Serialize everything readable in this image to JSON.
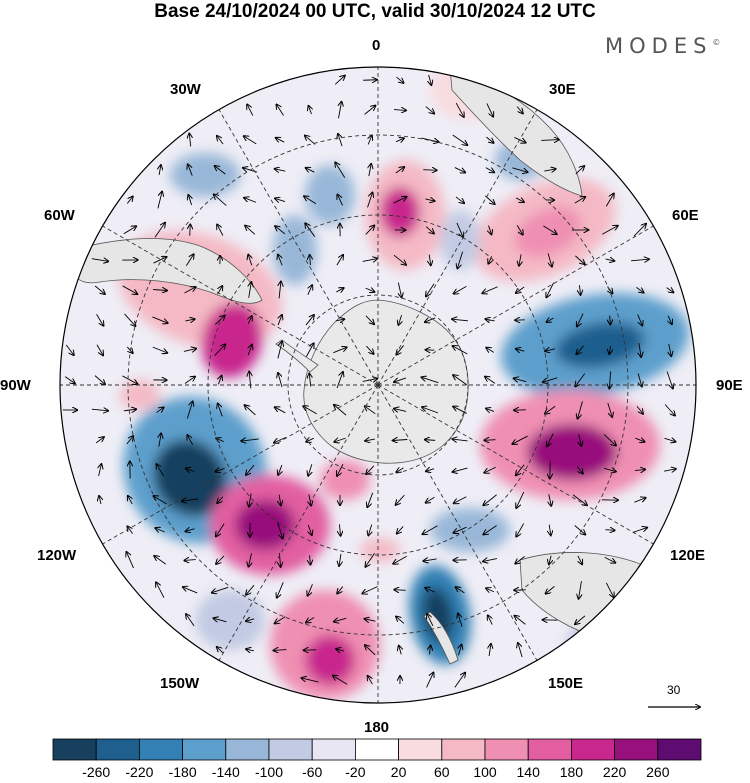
{
  "title": "Base 24/10/2024 00 UTC, valid 30/10/2024 12 UTC",
  "brand": "MODES",
  "brand_mark": "©",
  "longitude_labels": {
    "lon_0": "0",
    "lon_30e": "30E",
    "lon_60e": "60E",
    "lon_90e": "90E",
    "lon_120e": "120E",
    "lon_150e": "150E",
    "lon_180": "180",
    "lon_150w": "150W",
    "lon_120w": "120W",
    "lon_90w": "90W",
    "lon_60w": "60W",
    "lon_30w": "30W"
  },
  "vector_scale_label": "30",
  "colorbar": {
    "colors": [
      "#17405e",
      "#1f5f8e",
      "#3380b4",
      "#5d9fcc",
      "#98b7d8",
      "#c2cbe3",
      "#e7e6f2",
      "#ffffff",
      "#f8dcdf",
      "#f4b9c5",
      "#ef8fb2",
      "#e25ea1",
      "#c8288d",
      "#98107c",
      "#5e0b72"
    ],
    "ticks": [
      "-260",
      "-220",
      "-180",
      "-140",
      "-100",
      "-60",
      "-20",
      "20",
      "60",
      "100",
      "140",
      "180",
      "220",
      "260"
    ]
  },
  "colors": {
    "land": "#e9e9e9",
    "grid": "#333333",
    "coast": "#555555"
  }
}
